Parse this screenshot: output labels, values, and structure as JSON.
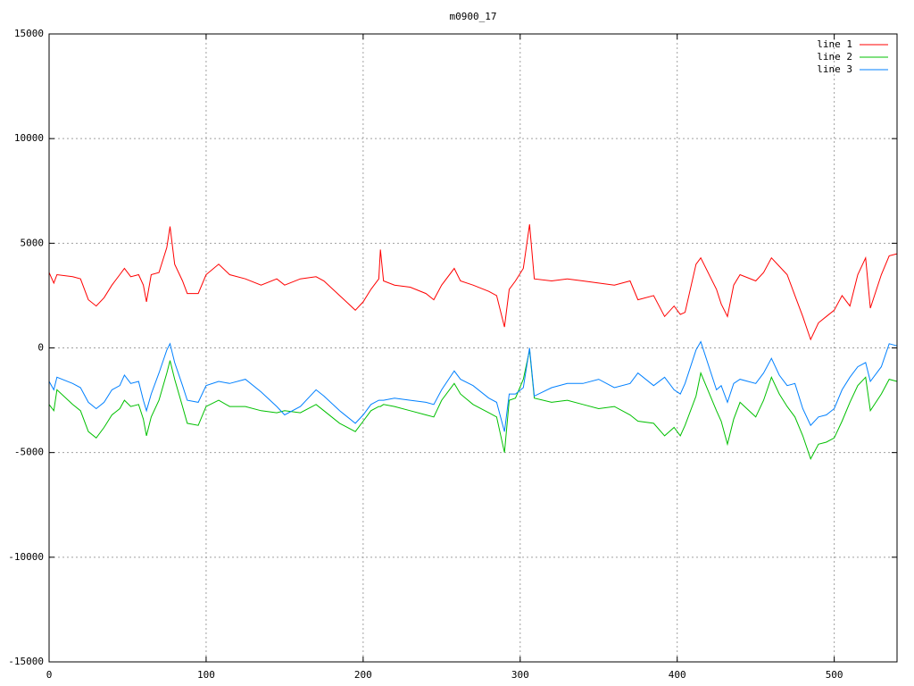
{
  "chart_data": {
    "type": "line",
    "title": "m0900_17",
    "x": [
      0,
      3,
      5,
      15,
      20,
      25,
      30,
      35,
      40,
      45,
      48,
      52,
      57,
      60,
      62,
      65,
      70,
      75,
      77,
      80,
      85,
      88,
      95,
      100,
      108,
      115,
      125,
      135,
      145,
      150,
      160,
      170,
      175,
      185,
      195,
      200,
      205,
      210,
      211,
      213,
      220,
      230,
      240,
      245,
      250,
      258,
      262,
      270,
      280,
      285,
      290,
      293,
      297,
      302,
      306,
      309,
      320,
      330,
      340,
      350,
      360,
      370,
      375,
      385,
      392,
      398,
      402,
      405,
      412,
      415,
      425,
      428,
      432,
      436,
      440,
      450,
      455,
      460,
      465,
      470,
      475,
      480,
      485,
      490,
      495,
      500,
      505,
      510,
      515,
      520,
      523,
      530,
      535,
      540
    ],
    "series": [
      {
        "name": "line 1",
        "color": "#ff0000",
        "values": [
          3600,
          3100,
          3500,
          3400,
          3300,
          2300,
          2000,
          2400,
          3000,
          3500,
          3800,
          3400,
          3500,
          3000,
          2200,
          3500,
          3600,
          4800,
          5800,
          4000,
          3200,
          2600,
          2600,
          3500,
          4000,
          3500,
          3300,
          3000,
          3300,
          3000,
          3300,
          3400,
          3200,
          2500,
          1800,
          2200,
          2800,
          3300,
          4700,
          3200,
          3000,
          2900,
          2600,
          2300,
          3000,
          3800,
          3200,
          3000,
          2700,
          2500,
          1000,
          2800,
          3200,
          3800,
          5900,
          3300,
          3200,
          3300,
          3200,
          3100,
          3000,
          3200,
          2300,
          2500,
          1500,
          2000,
          1600,
          1700,
          4000,
          4300,
          2800,
          2100,
          1500,
          3000,
          3500,
          3200,
          3600,
          4300,
          3900,
          3500,
          2500,
          1500,
          400,
          1200,
          1500,
          1800,
          2500,
          2000,
          3500,
          4300,
          1900,
          3500,
          4400,
          4500
        ]
      },
      {
        "name": "line 2",
        "color": "#00c000",
        "values": [
          -2700,
          -3000,
          -2000,
          -2700,
          -3000,
          -4000,
          -4300,
          -3800,
          -3200,
          -2900,
          -2500,
          -2800,
          -2700,
          -3400,
          -4200,
          -3300,
          -2500,
          -1200,
          -600,
          -1500,
          -2800,
          -3600,
          -3700,
          -2800,
          -2500,
          -2800,
          -2800,
          -3000,
          -3100,
          -3000,
          -3100,
          -2700,
          -3000,
          -3600,
          -4000,
          -3500,
          -3000,
          -2800,
          -2800,
          -2700,
          -2800,
          -3000,
          -3200,
          -3300,
          -2500,
          -1700,
          -2200,
          -2700,
          -3100,
          -3300,
          -5000,
          -2500,
          -2400,
          -1500,
          -100,
          -2400,
          -2600,
          -2500,
          -2700,
          -2900,
          -2800,
          -3200,
          -3500,
          -3600,
          -4200,
          -3800,
          -4200,
          -3700,
          -2300,
          -1200,
          -3000,
          -3500,
          -4600,
          -3400,
          -2600,
          -3300,
          -2500,
          -1400,
          -2200,
          -2800,
          -3300,
          -4200,
          -5300,
          -4600,
          -4500,
          -4300,
          -3500,
          -2600,
          -1800,
          -1400,
          -3000,
          -2200,
          -1500,
          -1600
        ]
      },
      {
        "name": "line 3",
        "color": "#0080ff",
        "values": [
          -1600,
          -2000,
          -1400,
          -1700,
          -1900,
          -2600,
          -2900,
          -2600,
          -2000,
          -1800,
          -1300,
          -1700,
          -1600,
          -2500,
          -3000,
          -2200,
          -1200,
          -100,
          200,
          -700,
          -1800,
          -2500,
          -2600,
          -1800,
          -1600,
          -1700,
          -1500,
          -2100,
          -2800,
          -3200,
          -2800,
          -2000,
          -2300,
          -3000,
          -3600,
          -3200,
          -2700,
          -2500,
          -2500,
          -2500,
          -2400,
          -2500,
          -2600,
          -2700,
          -2000,
          -1100,
          -1500,
          -1800,
          -2400,
          -2600,
          -4000,
          -2200,
          -2200,
          -1900,
          0,
          -2300,
          -1900,
          -1700,
          -1700,
          -1500,
          -1900,
          -1700,
          -1200,
          -1800,
          -1400,
          -2000,
          -2200,
          -1700,
          -100,
          300,
          -2000,
          -1800,
          -2600,
          -1700,
          -1500,
          -1700,
          -1200,
          -500,
          -1300,
          -1800,
          -1700,
          -2900,
          -3700,
          -3300,
          -3200,
          -2900,
          -2000,
          -1400,
          -900,
          -700,
          -1600,
          -900,
          200,
          100
        ]
      }
    ],
    "xlim": [
      0,
      540
    ],
    "xticks": [
      0,
      100,
      200,
      300,
      400,
      500
    ],
    "ylim": [
      -15000,
      15000
    ],
    "yticks": [
      -15000,
      -10000,
      -5000,
      0,
      5000,
      10000,
      15000
    ],
    "grid": true,
    "legend": "top-right"
  }
}
